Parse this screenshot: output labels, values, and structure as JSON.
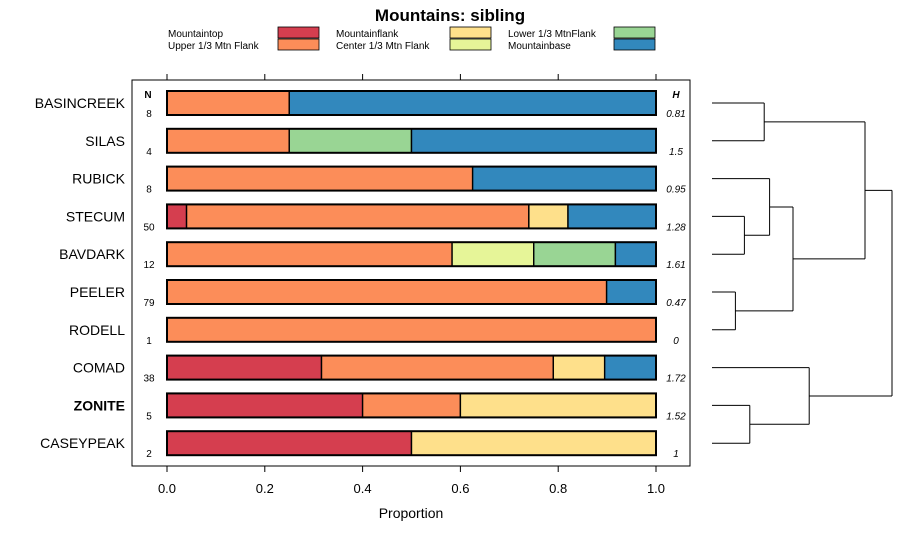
{
  "chart_data": {
    "type": "bar",
    "orientation": "horizontal",
    "stacked": true,
    "title": "Mountains: sibling",
    "xlabel": "Proportion",
    "xlim": [
      0,
      1
    ],
    "xticks": [
      "0.0",
      "0.2",
      "0.4",
      "0.6",
      "0.8",
      "1.0"
    ],
    "xtick_values": [
      0,
      0.2,
      0.4,
      0.6,
      0.8,
      1.0
    ],
    "n_header": "N",
    "h_header": "H",
    "legend": [
      {
        "name": "Mountaintop",
        "color": "#d53e4f"
      },
      {
        "name": "Upper 1/3 Mtn Flank",
        "color": "#fc8d59"
      },
      {
        "name": "Mountainflank",
        "color": "#fee08b"
      },
      {
        "name": "Center 1/3 Mtn Flank",
        "color": "#e6f598"
      },
      {
        "name": "Lower 1/3 MtnFlank",
        "color": "#99d594"
      },
      {
        "name": "Mountainbase",
        "color": "#3288bd"
      }
    ],
    "rows": [
      {
        "label": "BASINCREEK",
        "n": "8",
        "h": "0.81",
        "bold": false,
        "values": {
          "Mountaintop": 0,
          "Upper 1/3 Mtn Flank": 0.25,
          "Mountainflank": 0,
          "Center 1/3 Mtn Flank": 0,
          "Lower 1/3 MtnFlank": 0,
          "Mountainbase": 0.75
        }
      },
      {
        "label": "SILAS",
        "n": "4",
        "h": "1.5",
        "bold": false,
        "values": {
          "Mountaintop": 0,
          "Upper 1/3 Mtn Flank": 0.25,
          "Mountainflank": 0,
          "Center 1/3 Mtn Flank": 0,
          "Lower 1/3 MtnFlank": 0.25,
          "Mountainbase": 0.5
        }
      },
      {
        "label": "RUBICK",
        "n": "8",
        "h": "0.95",
        "bold": false,
        "values": {
          "Mountaintop": 0,
          "Upper 1/3 Mtn Flank": 0.625,
          "Mountainflank": 0,
          "Center 1/3 Mtn Flank": 0,
          "Lower 1/3 MtnFlank": 0,
          "Mountainbase": 0.375
        }
      },
      {
        "label": "STECUM",
        "n": "50",
        "h": "1.28",
        "bold": false,
        "values": {
          "Mountaintop": 0.04,
          "Upper 1/3 Mtn Flank": 0.7,
          "Mountainflank": 0.08,
          "Center 1/3 Mtn Flank": 0,
          "Lower 1/3 MtnFlank": 0,
          "Mountainbase": 0.18
        }
      },
      {
        "label": "BAVDARK",
        "n": "12",
        "h": "1.61",
        "bold": false,
        "values": {
          "Mountaintop": 0,
          "Upper 1/3 Mtn Flank": 0.583,
          "Mountainflank": 0,
          "Center 1/3 Mtn Flank": 0.167,
          "Lower 1/3 MtnFlank": 0.167,
          "Mountainbase": 0.083
        }
      },
      {
        "label": "PEELER",
        "n": "79",
        "h": "0.47",
        "bold": false,
        "values": {
          "Mountaintop": 0,
          "Upper 1/3 Mtn Flank": 0.899,
          "Mountainflank": 0,
          "Center 1/3 Mtn Flank": 0,
          "Lower 1/3 MtnFlank": 0,
          "Mountainbase": 0.101
        }
      },
      {
        "label": "RODELL",
        "n": "1",
        "h": "0",
        "bold": false,
        "values": {
          "Mountaintop": 0,
          "Upper 1/3 Mtn Flank": 1.0,
          "Mountainflank": 0,
          "Center 1/3 Mtn Flank": 0,
          "Lower 1/3 MtnFlank": 0,
          "Mountainbase": 0
        }
      },
      {
        "label": "COMAD",
        "n": "38",
        "h": "1.72",
        "bold": false,
        "values": {
          "Mountaintop": 0.316,
          "Upper 1/3 Mtn Flank": 0.474,
          "Mountainflank": 0.105,
          "Center 1/3 Mtn Flank": 0,
          "Lower 1/3 MtnFlank": 0,
          "Mountainbase": 0.105
        }
      },
      {
        "label": "ZONITE",
        "n": "5",
        "h": "1.52",
        "bold": true,
        "values": {
          "Mountaintop": 0.4,
          "Upper 1/3 Mtn Flank": 0.2,
          "Mountainflank": 0.4,
          "Center 1/3 Mtn Flank": 0,
          "Lower 1/3 MtnFlank": 0,
          "Mountainbase": 0
        }
      },
      {
        "label": "CASEYPEAK",
        "n": "2",
        "h": "1",
        "bold": false,
        "values": {
          "Mountaintop": 0.5,
          "Upper 1/3 Mtn Flank": 0,
          "Mountainflank": 0.5,
          "Center 1/3 Mtn Flank": 0,
          "Lower 1/3 MtnFlank": 0,
          "Mountainbase": 0
        }
      }
    ],
    "dendrogram": {
      "note": "cluster tree joining rows; heights relative (0 = leaves, 1 = root)",
      "merges": [
        {
          "a": "STECUM",
          "b": "BAVDARK",
          "height": 0.18
        },
        {
          "a": "PEELER",
          "b": "RODELL",
          "height": 0.13
        },
        {
          "a": "ZONITE",
          "b": "CASEYPEAK",
          "height": 0.21
        },
        {
          "a": "BASINCREEK",
          "b": "SILAS",
          "height": 0.29
        },
        {
          "a": "RUBICK",
          "b": "STECUM+BAVDARK",
          "height": 0.32
        },
        {
          "a": "RUBICK+STECUM+BAVDARK",
          "b": "PEELER+RODELL",
          "height": 0.45
        },
        {
          "a": "COMAD",
          "b": "ZONITE+CASEYPEAK",
          "height": 0.54
        },
        {
          "a": "BASINCREEK+SILAS",
          "b": "RUBICK+STECUM+BAVDARK+PEELER+RODELL",
          "height": 0.85
        },
        {
          "a": "ALL-TOP",
          "b": "COMAD+ZONITE+CASEYPEAK",
          "height": 1.0
        }
      ]
    }
  }
}
